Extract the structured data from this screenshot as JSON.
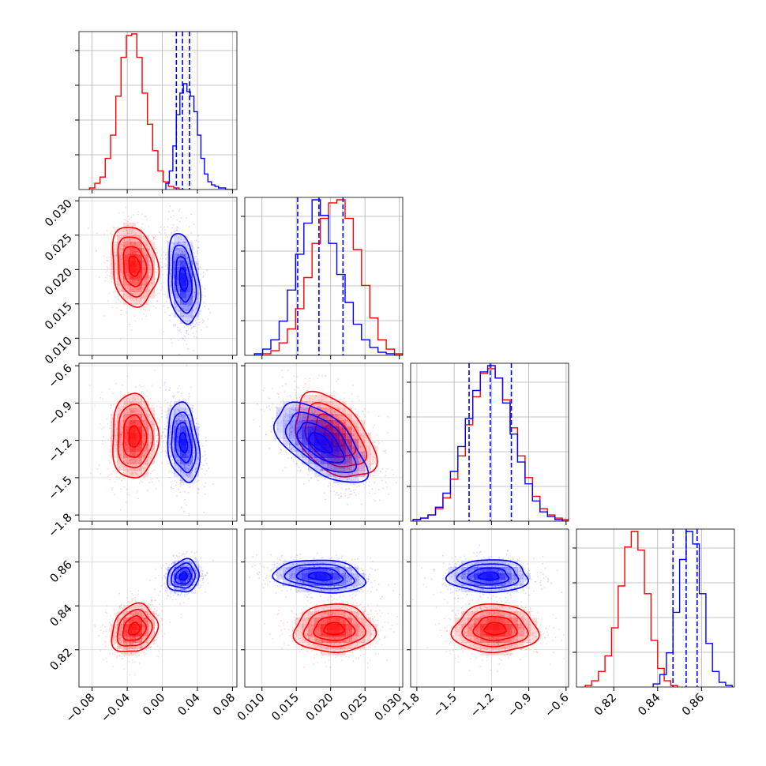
{
  "chart_data": {
    "type": "corner",
    "parameters": [
      {
        "ticks": [
          "−0.08",
          "−0.04",
          "0.00",
          "0.04",
          "0.08"
        ],
        "tick_values": [
          -0.08,
          -0.04,
          0.0,
          0.04,
          0.08
        ],
        "range": [
          -0.095,
          0.085
        ]
      },
      {
        "ticks": [
          "0.010",
          "0.015",
          "0.020",
          "0.025",
          "0.030"
        ],
        "tick_values": [
          0.01,
          0.015,
          0.02,
          0.025,
          0.03
        ],
        "range": [
          0.0075,
          0.0305
        ]
      },
      {
        "ticks": [
          "−1.8",
          "−1.5",
          "−1.2",
          "−0.9",
          "−0.6"
        ],
        "tick_values": [
          -1.8,
          -1.5,
          -1.2,
          -0.9,
          -0.6
        ],
        "range": [
          -1.85,
          -0.58
        ]
      },
      {
        "ticks": [
          "0.82",
          "0.84",
          "0.86"
        ],
        "tick_values": [
          0.82,
          0.84,
          0.86
        ],
        "range": [
          0.803,
          0.875
        ]
      }
    ],
    "series": [
      {
        "color": "#ff0000",
        "marginals": [
          {
            "centers": [
              -0.08,
              -0.074,
              -0.068,
              -0.062,
              -0.056,
              -0.05,
              -0.044,
              -0.038,
              -0.032,
              -0.026,
              -0.02,
              -0.014,
              -0.008,
              -0.002,
              0.004,
              0.01,
              0.016,
              0.022
            ],
            "counts": [
              1,
              4,
              8,
              20,
              35,
              60,
              85,
              99,
              100,
              85,
              62,
              42,
              25,
              12,
              5,
              2,
              1,
              0
            ]
          },
          {
            "centers": [
              0.0095,
              0.0107,
              0.0119,
              0.0131,
              0.0143,
              0.0155,
              0.0167,
              0.0179,
              0.0191,
              0.0203,
              0.0215,
              0.0227,
              0.0239,
              0.0251,
              0.0263,
              0.0275,
              0.0287,
              0.0299
            ],
            "counts": [
              0,
              1,
              3,
              8,
              17,
              30,
              50,
              72,
              88,
              98,
              100,
              88,
              68,
              45,
              24,
              10,
              4,
              1
            ]
          },
          {
            "centers": [
              -1.8,
              -1.74,
              -1.68,
              -1.62,
              -1.56,
              -1.5,
              -1.44,
              -1.38,
              -1.32,
              -1.26,
              -1.2,
              -1.14,
              -1.08,
              -1.02,
              -0.96,
              -0.9,
              -0.84,
              -0.78,
              -0.72,
              -0.66,
              -0.6
            ],
            "counts": [
              1,
              2,
              4,
              8,
              15,
              27,
              42,
              62,
              80,
              95,
              98,
              92,
              78,
              60,
              42,
              28,
              16,
              8,
              4,
              2,
              1
            ]
          },
          {
            "centers": [
              0.8085,
              0.8115,
              0.8145,
              0.8175,
              0.8205,
              0.8235,
              0.8265,
              0.8295,
              0.8325,
              0.8355,
              0.8385,
              0.8415,
              0.8445,
              0.8475
            ],
            "counts": [
              1,
              4,
              10,
              20,
              38,
              65,
              90,
              100,
              88,
              60,
              30,
              12,
              4,
              1
            ]
          }
        ],
        "mean": [
          -0.032,
          0.0205,
          -1.17,
          0.8295
        ],
        "std": [
          0.013,
          0.0029,
          0.17,
          0.0055
        ],
        "correlations": [
          [
            0,
            1,
            -0.15
          ],
          [
            0,
            2,
            0.0
          ],
          [
            0,
            3,
            0.2
          ],
          [
            1,
            2,
            -0.45
          ],
          [
            1,
            3,
            0.0
          ],
          [
            2,
            3,
            0.0
          ]
        ]
      },
      {
        "color": "#0000ff",
        "marginals": [
          {
            "centers": [
              0.006,
              0.01,
              0.014,
              0.018,
              0.022,
              0.026,
              0.03,
              0.034,
              0.038,
              0.042,
              0.046,
              0.05,
              0.054,
              0.058,
              0.062,
              0.066,
              0.07,
              0.074,
              0.078
            ],
            "counts": [
              4,
              12,
              28,
              48,
              62,
              68,
              63,
              60,
              50,
              35,
              20,
              10,
              5,
              3,
              2,
              1,
              1,
              0,
              0
            ]
          },
          {
            "centers": [
              0.0095,
              0.0107,
              0.0119,
              0.0131,
              0.0143,
              0.0155,
              0.0167,
              0.0179,
              0.0191,
              0.0203,
              0.0215,
              0.0227,
              0.0239,
              0.0251,
              0.0263,
              0.0275,
              0.0287,
              0.0299
            ],
            "counts": [
              1,
              4,
              10,
              22,
              42,
              65,
              85,
              100,
              90,
              72,
              52,
              34,
              20,
              10,
              5,
              2,
              1,
              0
            ]
          },
          {
            "centers": [
              -1.8,
              -1.74,
              -1.68,
              -1.62,
              -1.56,
              -1.5,
              -1.44,
              -1.38,
              -1.32,
              -1.26,
              -1.2,
              -1.14,
              -1.08,
              -1.02,
              -0.96,
              -0.9,
              -0.84,
              -0.78,
              -0.72,
              -0.66,
              -0.6
            ],
            "counts": [
              1,
              2,
              4,
              9,
              18,
              32,
              48,
              66,
              84,
              96,
              100,
              92,
              76,
              56,
              38,
              24,
              13,
              6,
              3,
              1,
              0
            ]
          },
          {
            "centers": [
              0.8395,
              0.8425,
              0.8455,
              0.8485,
              0.8515,
              0.8545,
              0.8575,
              0.8605,
              0.8635,
              0.8665,
              0.8695,
              0.8725
            ],
            "counts": [
              2,
              8,
              22,
              48,
              82,
              100,
              92,
              60,
              28,
              10,
              3,
              1
            ]
          }
        ],
        "quantile_lines": [
          [
            0.016,
            0.023,
            0.031
          ],
          [
            0.0152,
            0.0183,
            0.0218
          ],
          [
            -1.38,
            -1.21,
            -1.04
          ],
          [
            0.847,
            0.853,
            0.858
          ]
        ],
        "mean": [
          0.024,
          0.0185,
          -1.22,
          0.8535
        ],
        "std": [
          0.009,
          0.0033,
          0.16,
          0.0037
        ],
        "correlations": [
          [
            0,
            1,
            -0.3
          ],
          [
            0,
            2,
            -0.25
          ],
          [
            0,
            3,
            0.15
          ],
          [
            1,
            2,
            -0.6
          ],
          [
            1,
            3,
            -0.2
          ],
          [
            2,
            3,
            0.0
          ]
        ]
      }
    ],
    "grid": true
  }
}
